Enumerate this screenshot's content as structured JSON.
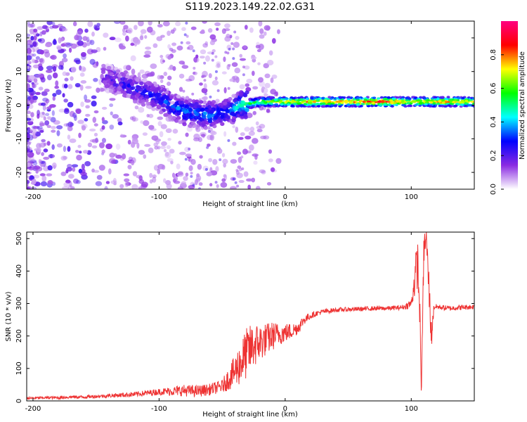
{
  "figure": {
    "title": "S119.2023.149.22.02.G31"
  },
  "chart_data": [
    {
      "type": "heatmap",
      "name": "spectrogram",
      "xlabel": "Height of straight line (km)",
      "ylabel": "Frequency (Hz)",
      "xlim": [
        -205,
        150
      ],
      "ylim": [
        -25,
        25
      ],
      "xticks": [
        -200,
        -100,
        0,
        100
      ],
      "yticks": [
        -20,
        -10,
        0,
        10,
        20
      ],
      "colorbar": {
        "label": "Normalized spectral amplitude",
        "range": [
          0.0,
          1.0
        ],
        "ticks": [
          "0.0",
          "0.2",
          "0.4",
          "0.6",
          "0.8"
        ],
        "tick_values": [
          0.0,
          0.2,
          0.4,
          0.6,
          0.8
        ],
        "colors": [
          "#ffffff",
          "#8a2be2",
          "#0000ff",
          "#00ffff",
          "#00ff00",
          "#ffff00",
          "#ff0000",
          "#ff0080"
        ]
      },
      "description_series": {
        "name": "dominant frequency ridge",
        "x": [
          -140,
          -120,
          -100,
          -80,
          -60,
          -45,
          -35,
          -20,
          0,
          20,
          40,
          60,
          80,
          100,
          120,
          150
        ],
        "freq": [
          8,
          5,
          2,
          -2,
          -3,
          -2,
          0,
          1,
          1,
          1,
          1,
          1,
          1,
          1,
          1,
          1
        ],
        "amplitude": [
          0.2,
          0.25,
          0.3,
          0.35,
          0.35,
          0.3,
          0.5,
          0.6,
          0.75,
          0.8,
          0.8,
          0.85,
          0.9,
          0.7,
          0.8,
          0.75
        ]
      }
    },
    {
      "type": "line",
      "name": "snr",
      "xlabel": "Height of straight line (km)",
      "ylabel": "SNR (10 * v/v)",
      "xlim": [
        -205,
        150
      ],
      "ylim": [
        0,
        520
      ],
      "xticks": [
        -200,
        -100,
        0,
        100
      ],
      "yticks": [
        0,
        100,
        200,
        300,
        400,
        500
      ],
      "series": [
        {
          "name": "SNR",
          "color": "#ee3333",
          "x": [
            -205,
            -190,
            -180,
            -170,
            -160,
            -150,
            -140,
            -130,
            -120,
            -110,
            -100,
            -90,
            -80,
            -70,
            -60,
            -50,
            -40,
            -35,
            -30,
            -25,
            -20,
            -15,
            -10,
            -5,
            0,
            5,
            10,
            15,
            20,
            25,
            30,
            40,
            50,
            60,
            70,
            80,
            90,
            95,
            100,
            103,
            105,
            107,
            108,
            110,
            112,
            114,
            116,
            118,
            120,
            130,
            140,
            150
          ],
          "values": [
            8,
            10,
            10,
            12,
            12,
            14,
            16,
            18,
            20,
            24,
            28,
            30,
            32,
            30,
            35,
            45,
            90,
            120,
            150,
            170,
            180,
            190,
            200,
            205,
            210,
            215,
            225,
            250,
            262,
            270,
            275,
            280,
            282,
            283,
            285,
            285,
            287,
            290,
            300,
            380,
            430,
            250,
            20,
            470,
            500,
            350,
            200,
            290,
            290,
            285,
            288,
            290
          ],
          "noise": [
            4,
            4,
            5,
            5,
            5,
            5,
            6,
            7,
            8,
            9,
            10,
            14,
            18,
            18,
            18,
            20,
            50,
            70,
            80,
            70,
            60,
            50,
            45,
            35,
            30,
            25,
            20,
            15,
            10,
            8,
            8,
            7,
            7,
            7,
            7,
            7,
            7,
            8,
            15,
            60,
            80,
            40,
            10,
            60,
            30,
            60,
            50,
            10,
            8,
            8,
            8,
            8
          ]
        }
      ]
    }
  ]
}
